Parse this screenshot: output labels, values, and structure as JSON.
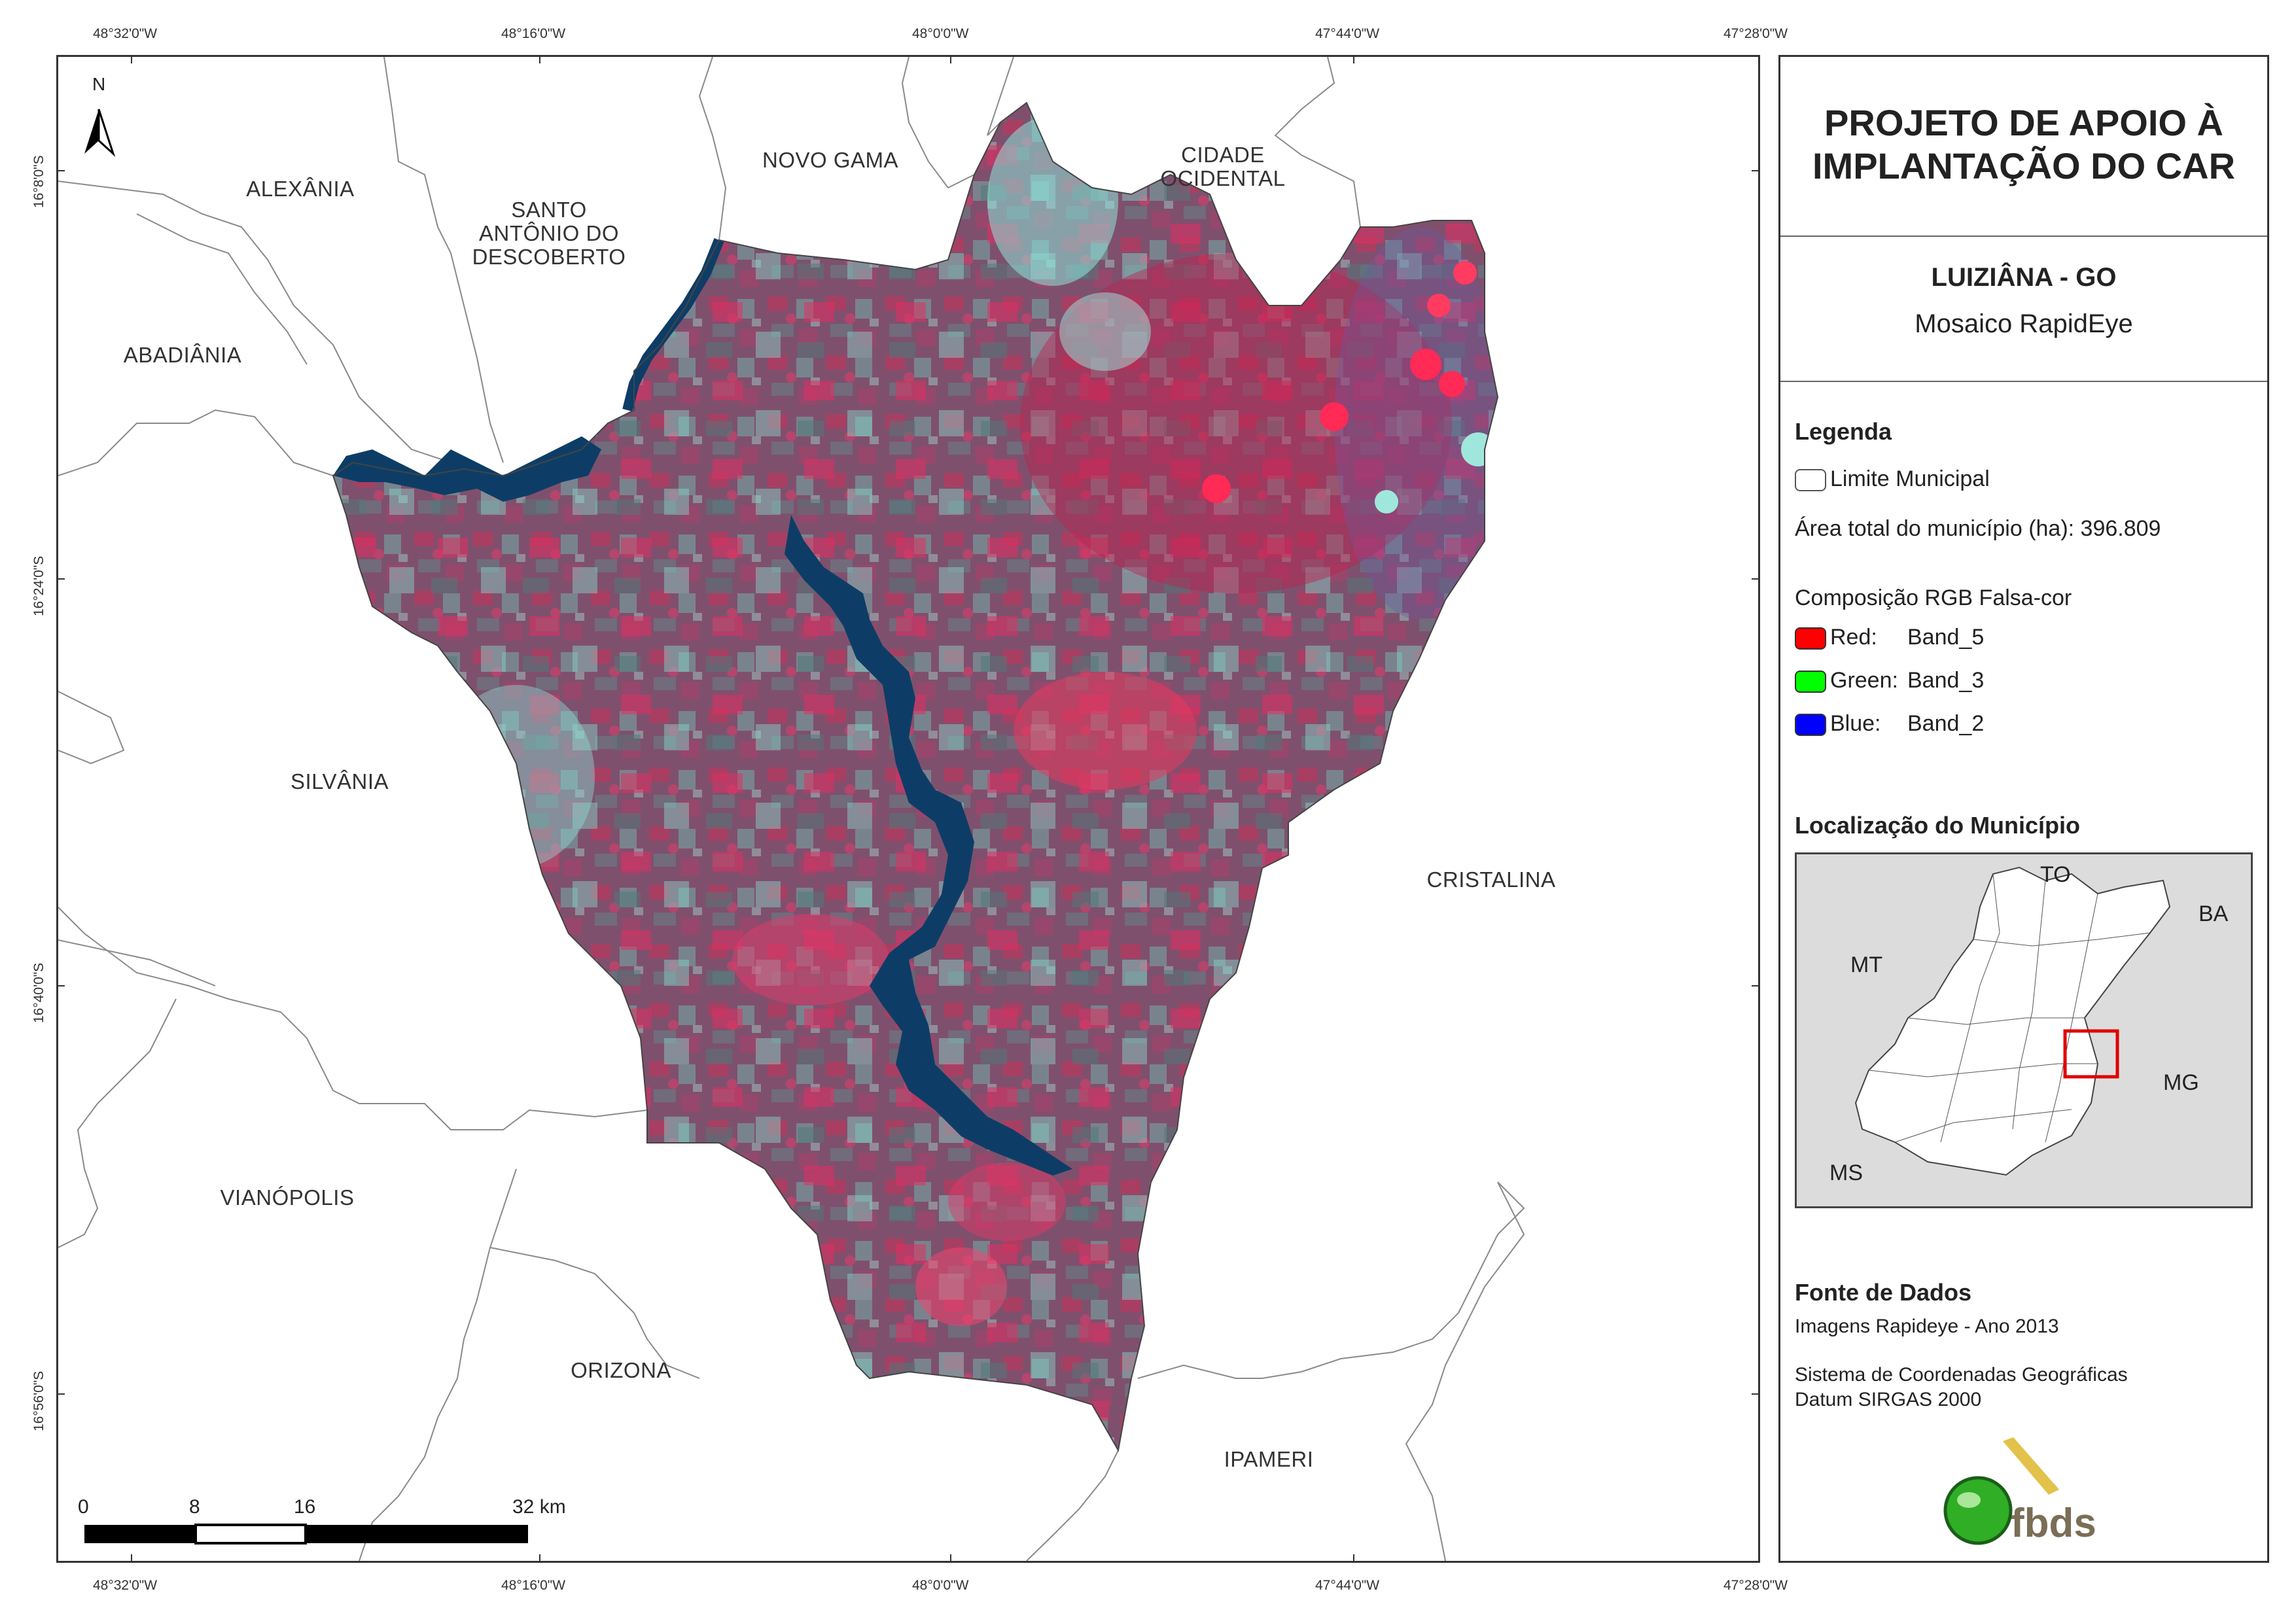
{
  "title": {
    "line1": "PROJETO DE APOIO À",
    "line2": "IMPLANTAÇÃO DO CAR"
  },
  "subtitle": {
    "name": "LUIZIÂNA - GO",
    "product": "Mosaico RapidEye"
  },
  "legend": {
    "heading": "Legenda",
    "boundary_label": "Limite Municipal",
    "area_label": "Área total do município (ha): 396.809",
    "composition_label": "Composição RGB Falsa-cor",
    "bands": [
      {
        "name": "Red:",
        "band": "Band_5",
        "color": "#ff0000"
      },
      {
        "name": "Green:",
        "band": "Band_3",
        "color": "#00ff00"
      },
      {
        "name": "Blue:",
        "band": "Band_2",
        "color": "#0000ff"
      }
    ]
  },
  "location": {
    "heading": "Localização do Município",
    "states": {
      "to": "TO",
      "ba": "BA",
      "mt": "MT",
      "mg": "MG",
      "ms": "MS"
    }
  },
  "sources": {
    "heading": "Fonte de Dados",
    "line1": "Imagens Rapideye - Ano 2013",
    "line2": "Sistema de Coordenadas Geográficas",
    "line3": "Datum SIRGAS 2000"
  },
  "logo": {
    "text": "fbds"
  },
  "north": {
    "label": "N"
  },
  "scale_bar": {
    "labels": [
      "0",
      "8",
      "16",
      "32 km"
    ]
  },
  "longitude_ticks": [
    "48°32'0\"W",
    "48°16'0\"W",
    "48°0'0\"W",
    "47°44'0\"W",
    "47°28'0\"W"
  ],
  "latitude_ticks": [
    "16°8'0\"S",
    "16°24'0\"S",
    "16°40'0\"S",
    "16°56'0\"S"
  ],
  "municipalities": {
    "alexania": "ALEXÂNIA",
    "santo_antonio": "SANTO ANTÔNIO DO DESCOBERTO",
    "novo_gama": "NOVO GAMA",
    "cidade_ocidental": "CIDADE OCIDENTAL",
    "abadiania": "ABADIÂNIA",
    "silvania": "SILVÂNIA",
    "cristalina": "CRISTALINA",
    "vianopolis": "VIANÓPOLIS",
    "orizona": "ORIZONA",
    "ipameri": "IPAMERI"
  },
  "colors": {
    "water": "#0d3d66",
    "vegetation_red": "#d0224f",
    "soil_cyan": "#7fd6cc",
    "base_mauve": "#7a5a72",
    "locator_box": "#e00000"
  }
}
